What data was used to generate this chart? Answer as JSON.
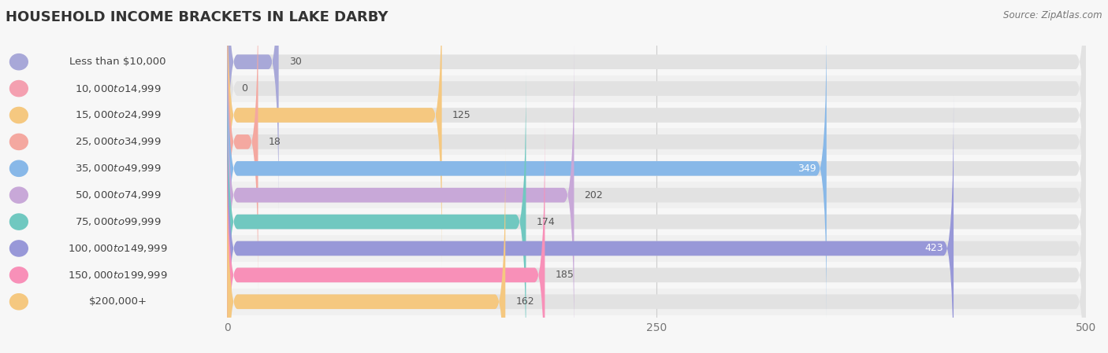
{
  "title": "HOUSEHOLD INCOME BRACKETS IN LAKE DARBY",
  "source": "Source: ZipAtlas.com",
  "categories": [
    "Less than $10,000",
    "$10,000 to $14,999",
    "$15,000 to $24,999",
    "$25,000 to $34,999",
    "$35,000 to $49,999",
    "$50,000 to $74,999",
    "$75,000 to $99,999",
    "$100,000 to $149,999",
    "$150,000 to $199,999",
    "$200,000+"
  ],
  "values": [
    30,
    0,
    125,
    18,
    349,
    202,
    174,
    423,
    185,
    162
  ],
  "bar_colors": [
    "#a8a8d8",
    "#f4a0b0",
    "#f5c880",
    "#f4a8a0",
    "#88b8e8",
    "#c8a8d8",
    "#70c8c0",
    "#9898d8",
    "#f890b8",
    "#f5c880"
  ],
  "circle_colors": [
    "#a8a8d8",
    "#f4a0b0",
    "#f5c880",
    "#f4a8a0",
    "#88b8e8",
    "#c8a8d8",
    "#70c8c0",
    "#9898d8",
    "#f890b8",
    "#f5c880"
  ],
  "xlim": [
    0,
    500
  ],
  "xticks": [
    0,
    250,
    500
  ],
  "title_fontsize": 13,
  "tick_fontsize": 10,
  "bar_label_fontsize": 9,
  "category_fontsize": 9.5
}
